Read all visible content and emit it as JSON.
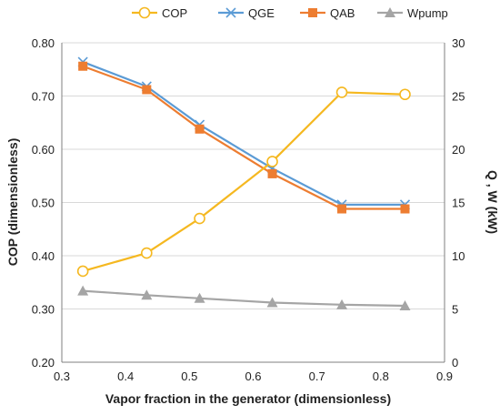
{
  "chart_data": {
    "type": "line",
    "xlabel": "Vapor fraction in the generator (dimensionless)",
    "ylabel_left": "COP (dimensionless)",
    "ylabel_right": "Q , W  (kW)",
    "xlim": [
      0.3,
      0.9
    ],
    "xticks": [
      "0.3",
      "0.4",
      "0.5",
      "0.6",
      "0.7",
      "0.8",
      "0.9"
    ],
    "ylim_left": [
      0.2,
      0.8
    ],
    "yticks_left": [
      "0.20",
      "0.30",
      "0.40",
      "0.50",
      "0.60",
      "0.70",
      "0.80"
    ],
    "ylim_right": [
      0,
      30
    ],
    "yticks_right": [
      "0",
      "5",
      "10",
      "15",
      "20",
      "25",
      "30"
    ],
    "grid": "horizontal",
    "legend_position": "top",
    "x": [
      0.333,
      0.433,
      0.516,
      0.63,
      0.739,
      0.838
    ],
    "series": [
      {
        "name": "COP",
        "axis": "left",
        "color": "#F5B820",
        "marker": "circle",
        "values": [
          0.371,
          0.405,
          0.47,
          0.577,
          0.707,
          0.703
        ]
      },
      {
        "name": "QGE",
        "axis": "right",
        "color": "#5B9BD5",
        "marker": "x",
        "values": [
          28.2,
          25.9,
          22.3,
          18.2,
          14.8,
          14.8
        ]
      },
      {
        "name": "QAB",
        "axis": "right",
        "color": "#ED7D31",
        "marker": "square",
        "values": [
          27.8,
          25.6,
          21.9,
          17.7,
          14.4,
          14.4
        ]
      },
      {
        "name": "Wpump",
        "axis": "right",
        "color": "#A5A5A5",
        "marker": "triangle",
        "values": [
          6.7,
          6.3,
          6.0,
          5.6,
          5.4,
          5.3
        ]
      }
    ]
  }
}
